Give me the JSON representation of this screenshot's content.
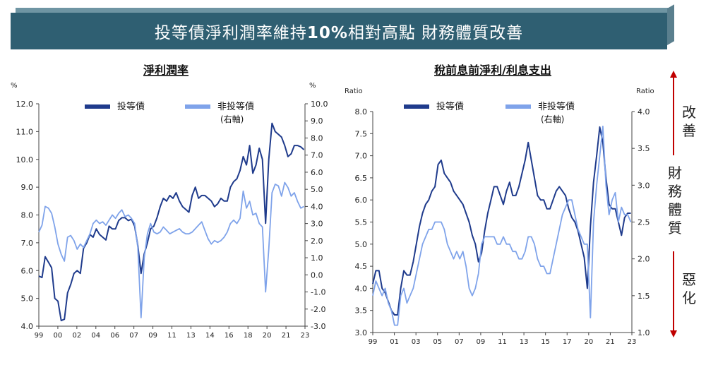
{
  "banner": {
    "title_prefix": "投等債淨利潤率維持",
    "title_bold": "10%",
    "title_suffix": "相對高點 財務體質改善"
  },
  "side": {
    "improve": "改善",
    "health": "財務體質",
    "worsen": "惡化",
    "arrow_color": "#c00000"
  },
  "colors": {
    "ig": "#1f3b8c",
    "hy": "#7fa3ea"
  },
  "chart_data": [
    {
      "type": "line",
      "title": "淨利潤率",
      "left_unit": "%",
      "right_unit": "%",
      "ylim": [
        4.0,
        12.0
      ],
      "yticks": [
        "4.0",
        "5.0",
        "6.0",
        "7.0",
        "8.0",
        "9.0",
        "10.0",
        "11.0",
        "12.0"
      ],
      "y2lim": [
        -3.0,
        10.0
      ],
      "y2ticks": [
        "-3.0",
        "-2.0",
        "-1.0",
        "0.0",
        "1.0",
        "2.0",
        "3.0",
        "4.0",
        "5.0",
        "6.0",
        "7.0",
        "8.0",
        "9.0",
        "10.0"
      ],
      "xlim": [
        1999.0,
        2024.0
      ],
      "xticks": [
        "99",
        "00",
        "02",
        "04",
        "06",
        "07",
        "09",
        "11",
        "13",
        "14",
        "16",
        "18",
        "20",
        "21",
        "23"
      ],
      "legend_location": "top",
      "series": [
        {
          "name": "投等債",
          "axis": "left",
          "x": [
            1999.0,
            1999.3,
            1999.6,
            1999.9,
            2000.2,
            2000.5,
            2000.8,
            2001.1,
            2001.4,
            2001.7,
            2002.0,
            2002.3,
            2002.6,
            2002.9,
            2003.2,
            2003.5,
            2003.8,
            2004.1,
            2004.4,
            2004.7,
            2005.0,
            2005.3,
            2005.6,
            2005.9,
            2006.2,
            2006.5,
            2006.8,
            2007.1,
            2007.4,
            2007.7,
            2008.0,
            2008.3,
            2008.6,
            2008.9,
            2009.2,
            2009.5,
            2009.8,
            2010.1,
            2010.4,
            2010.7,
            2011.0,
            2011.3,
            2011.6,
            2011.9,
            2012.2,
            2012.5,
            2012.8,
            2013.1,
            2013.4,
            2013.7,
            2014.0,
            2014.3,
            2014.6,
            2014.9,
            2015.2,
            2015.5,
            2015.8,
            2016.1,
            2016.4,
            2016.7,
            2017.0,
            2017.3,
            2017.6,
            2017.9,
            2018.2,
            2018.5,
            2018.8,
            2019.1,
            2019.4,
            2019.7,
            2020.0,
            2020.3,
            2020.6,
            2020.9,
            2021.2,
            2021.5,
            2021.8,
            2022.1,
            2022.4,
            2022.7,
            2023.0,
            2023.3,
            2023.6,
            2023.9
          ],
          "y": [
            5.8,
            5.75,
            6.5,
            6.3,
            6.1,
            5.0,
            4.9,
            4.2,
            4.25,
            5.2,
            5.5,
            5.9,
            6.0,
            5.9,
            6.8,
            7.0,
            7.3,
            7.2,
            7.5,
            7.3,
            7.2,
            7.1,
            7.6,
            7.5,
            7.5,
            7.8,
            7.9,
            7.9,
            7.8,
            7.85,
            7.6,
            6.9,
            5.9,
            6.6,
            7.0,
            7.5,
            7.6,
            7.9,
            8.3,
            8.6,
            8.5,
            8.7,
            8.6,
            8.8,
            8.5,
            8.3,
            8.2,
            8.1,
            8.7,
            9.0,
            8.6,
            8.7,
            8.7,
            8.6,
            8.5,
            8.3,
            8.4,
            8.6,
            8.5,
            8.5,
            9.0,
            9.2,
            9.3,
            9.6,
            10.1,
            9.8,
            10.5,
            9.5,
            9.8,
            10.4,
            10.0,
            7.7,
            10.0,
            11.3,
            11.0,
            10.9,
            10.8,
            10.5,
            10.1,
            10.2,
            10.5,
            10.5,
            10.45,
            10.35
          ]
        },
        {
          "name": "非投等債",
          "sublabel": "(右軸)",
          "axis": "right",
          "x": [
            1999.0,
            1999.3,
            1999.6,
            1999.9,
            2000.2,
            2000.5,
            2000.8,
            2001.1,
            2001.4,
            2001.7,
            2002.0,
            2002.3,
            2002.6,
            2002.9,
            2003.2,
            2003.5,
            2003.8,
            2004.1,
            2004.4,
            2004.7,
            2005.0,
            2005.3,
            2005.6,
            2005.9,
            2006.2,
            2006.5,
            2006.8,
            2007.1,
            2007.4,
            2007.7,
            2008.0,
            2008.3,
            2008.6,
            2008.9,
            2009.2,
            2009.5,
            2009.8,
            2010.1,
            2010.4,
            2010.7,
            2011.0,
            2011.3,
            2011.6,
            2011.9,
            2012.2,
            2012.5,
            2012.8,
            2013.1,
            2013.4,
            2013.7,
            2014.0,
            2014.3,
            2014.6,
            2014.9,
            2015.2,
            2015.5,
            2015.8,
            2016.1,
            2016.4,
            2016.7,
            2017.0,
            2017.3,
            2017.6,
            2017.9,
            2018.2,
            2018.5,
            2018.8,
            2019.1,
            2019.4,
            2019.7,
            2020.0,
            2020.3,
            2020.6,
            2020.9,
            2021.2,
            2021.5,
            2021.8,
            2022.1,
            2022.4,
            2022.7,
            2023.0,
            2023.3,
            2023.6,
            2023.9
          ],
          "y": [
            2.5,
            2.9,
            4.0,
            3.9,
            3.6,
            2.8,
            1.8,
            1.2,
            0.8,
            2.2,
            2.3,
            2.0,
            1.5,
            1.8,
            1.6,
            2.0,
            2.4,
            3.0,
            3.2,
            3.0,
            3.1,
            2.9,
            3.2,
            3.5,
            3.3,
            3.6,
            3.8,
            3.4,
            3.5,
            3.3,
            3.0,
            1.6,
            -2.5,
            1.0,
            2.4,
            3.0,
            2.5,
            2.4,
            2.5,
            2.8,
            2.6,
            2.4,
            2.5,
            2.6,
            2.7,
            2.5,
            2.4,
            2.4,
            2.5,
            2.7,
            2.9,
            3.1,
            2.6,
            2.1,
            1.8,
            2.0,
            1.9,
            2.0,
            2.2,
            2.5,
            3.0,
            3.2,
            3.0,
            3.3,
            4.9,
            3.9,
            4.3,
            3.5,
            3.6,
            3.0,
            2.8,
            -1.0,
            1.5,
            4.8,
            5.3,
            5.2,
            4.6,
            5.4,
            5.1,
            4.6,
            4.8,
            4.3,
            3.9,
            4.0
          ]
        }
      ]
    },
    {
      "type": "line",
      "title": "稅前息前淨利/利息支出",
      "left_unit": "Ratio",
      "right_unit": "Ratio",
      "ylim": [
        3.0,
        8.0
      ],
      "yticks": [
        "3.0",
        "3.5",
        "4.0",
        "4.5",
        "5.0",
        "5.5",
        "6.0",
        "6.5",
        "7.0",
        "7.5",
        "8.0"
      ],
      "y2lim": [
        1.0,
        4.0
      ],
      "y2ticks": [
        "1.0",
        "1.5",
        "2.0",
        "2.5",
        "3.0",
        "3.5",
        "4.0"
      ],
      "xlim": [
        1999.0,
        2024.0
      ],
      "xticks": [
        "99",
        "01",
        "03",
        "05",
        "07",
        "09",
        "11",
        "13",
        "15",
        "17",
        "20",
        "21",
        "23"
      ],
      "legend_location": "top",
      "series": [
        {
          "name": "投等債",
          "axis": "left",
          "x": [
            1999.0,
            1999.3,
            1999.6,
            1999.9,
            2000.2,
            2000.5,
            2000.8,
            2001.1,
            2001.4,
            2001.7,
            2002.0,
            2002.3,
            2002.6,
            2002.9,
            2003.2,
            2003.5,
            2003.8,
            2004.1,
            2004.4,
            2004.7,
            2005.0,
            2005.3,
            2005.6,
            2005.9,
            2006.2,
            2006.5,
            2006.8,
            2007.1,
            2007.4,
            2007.7,
            2008.0,
            2008.3,
            2008.6,
            2008.9,
            2009.2,
            2009.5,
            2009.8,
            2010.1,
            2010.4,
            2010.7,
            2011.0,
            2011.3,
            2011.6,
            2011.9,
            2012.2,
            2012.5,
            2012.8,
            2013.1,
            2013.4,
            2013.7,
            2014.0,
            2014.3,
            2014.6,
            2014.9,
            2015.2,
            2015.5,
            2015.8,
            2016.1,
            2016.4,
            2016.7,
            2017.0,
            2017.3,
            2017.6,
            2017.9,
            2018.2,
            2018.5,
            2018.8,
            2019.1,
            2019.4,
            2019.7,
            2020.0,
            2020.3,
            2020.6,
            2020.9,
            2021.2,
            2021.5,
            2021.8,
            2022.1,
            2022.4,
            2022.7,
            2023.0,
            2023.3,
            2023.6,
            2023.9
          ],
          "y": [
            4.1,
            4.4,
            4.4,
            4.0,
            3.9,
            3.7,
            3.5,
            3.4,
            3.4,
            4.0,
            4.4,
            4.3,
            4.3,
            4.6,
            5.0,
            5.4,
            5.7,
            5.9,
            6.0,
            6.2,
            6.3,
            6.8,
            6.9,
            6.6,
            6.5,
            6.4,
            6.2,
            6.1,
            6.0,
            5.9,
            5.7,
            5.5,
            5.2,
            5.0,
            4.6,
            4.8,
            5.3,
            5.7,
            6.0,
            6.3,
            6.3,
            6.1,
            5.9,
            6.2,
            6.4,
            6.1,
            6.1,
            6.3,
            6.6,
            6.9,
            7.3,
            6.9,
            6.5,
            6.1,
            6.0,
            6.0,
            5.8,
            5.8,
            6.0,
            6.2,
            6.3,
            6.2,
            6.1,
            5.8,
            5.6,
            5.5,
            5.3,
            5.0,
            4.7,
            4.0,
            5.4,
            6.4,
            7.0,
            7.65,
            7.3,
            6.5,
            5.9,
            5.8,
            5.8,
            5.5,
            5.2,
            5.6,
            5.7,
            5.7
          ]
        },
        {
          "name": "非投等債",
          "sublabel": "(右軸)",
          "axis": "right",
          "x": [
            1999.0,
            1999.3,
            1999.6,
            1999.9,
            2000.2,
            2000.5,
            2000.8,
            2001.1,
            2001.4,
            2001.7,
            2002.0,
            2002.3,
            2002.6,
            2002.9,
            2003.2,
            2003.5,
            2003.8,
            2004.1,
            2004.4,
            2004.7,
            2005.0,
            2005.3,
            2005.6,
            2005.9,
            2006.2,
            2006.5,
            2006.8,
            2007.1,
            2007.4,
            2007.7,
            2008.0,
            2008.3,
            2008.6,
            2008.9,
            2009.2,
            2009.5,
            2009.8,
            2010.1,
            2010.4,
            2010.7,
            2011.0,
            2011.3,
            2011.6,
            2011.9,
            2012.2,
            2012.5,
            2012.8,
            2013.1,
            2013.4,
            2013.7,
            2014.0,
            2014.3,
            2014.6,
            2014.9,
            2015.2,
            2015.5,
            2015.8,
            2016.1,
            2016.4,
            2016.7,
            2017.0,
            2017.3,
            2017.6,
            2017.9,
            2018.2,
            2018.5,
            2018.8,
            2019.1,
            2019.4,
            2019.7,
            2020.0,
            2020.3,
            2020.6,
            2020.9,
            2021.2,
            2021.5,
            2021.8,
            2022.1,
            2022.4,
            2022.7,
            2023.0,
            2023.3,
            2023.6,
            2023.9
          ],
          "y": [
            1.5,
            1.7,
            1.6,
            1.5,
            1.6,
            1.4,
            1.3,
            1.1,
            1.1,
            1.5,
            1.6,
            1.4,
            1.5,
            1.6,
            1.8,
            2.0,
            2.2,
            2.3,
            2.4,
            2.4,
            2.5,
            2.5,
            2.5,
            2.4,
            2.2,
            2.1,
            2.0,
            2.1,
            2.0,
            2.1,
            1.9,
            1.6,
            1.5,
            1.6,
            1.8,
            2.2,
            2.3,
            2.3,
            2.3,
            2.3,
            2.2,
            2.2,
            2.3,
            2.2,
            2.2,
            2.1,
            2.1,
            2.0,
            2.0,
            2.1,
            2.3,
            2.3,
            2.2,
            2.0,
            1.9,
            1.9,
            1.8,
            1.8,
            2.0,
            2.2,
            2.4,
            2.6,
            2.7,
            2.8,
            2.8,
            2.6,
            2.4,
            2.3,
            2.2,
            2.2,
            1.2,
            2.5,
            3.0,
            3.4,
            3.8,
            3.0,
            2.6,
            2.8,
            2.9,
            2.5,
            2.7,
            2.6,
            2.6,
            2.5
          ]
        }
      ]
    }
  ]
}
